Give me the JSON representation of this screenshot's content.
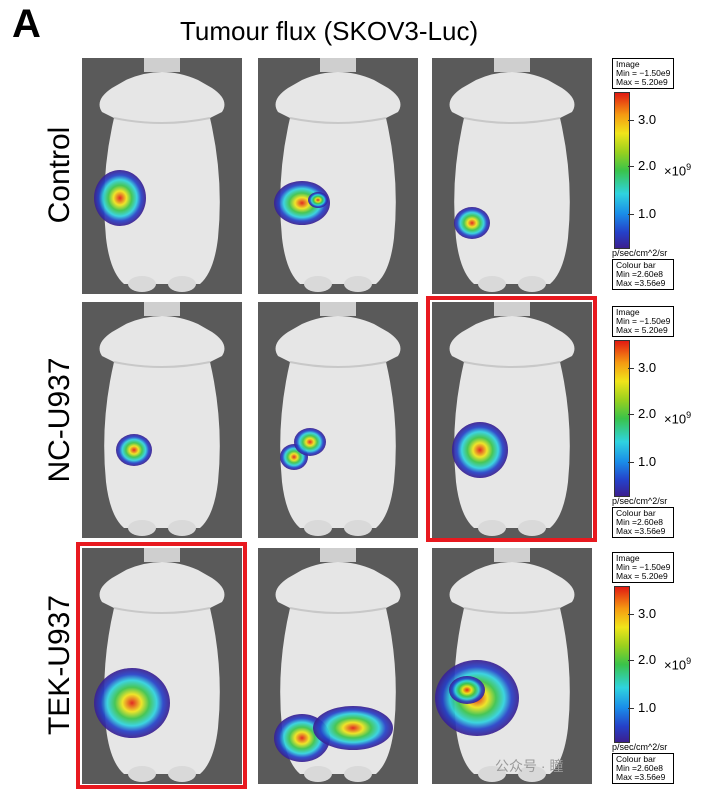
{
  "panel_letter": "A",
  "title": "Tumour flux (SKOV3-Luc)",
  "rows": [
    {
      "label": "Control"
    },
    {
      "label": "NC-U937"
    },
    {
      "label": "TEK-U937"
    }
  ],
  "scalebar": {
    "image_label": "Image",
    "image_min": "Min = −1.50e9",
    "image_max": "Max = 5.20e9",
    "ticks": [
      "3.0",
      "2.0",
      "1.0"
    ],
    "exponent": "×10",
    "exponent_power": "9",
    "unit": "p/sec/cm^2/sr",
    "colour_bar_label": "Colour bar",
    "colour_min": "Min =2.60e8",
    "colour_max": "Max =3.56e9"
  },
  "highlight_color": "#e8191f",
  "watermark": "公众号 · 瞳"
}
